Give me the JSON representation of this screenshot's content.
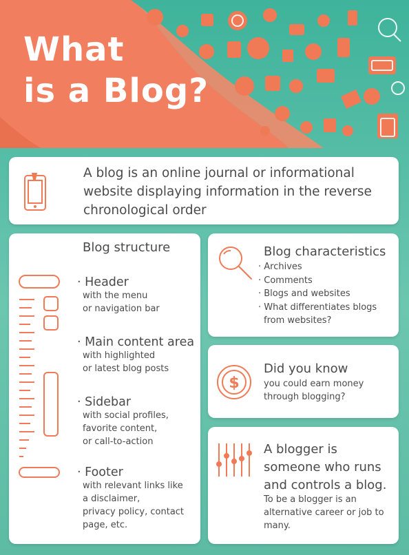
{
  "title": {
    "line1": "What",
    "line2": "is a Blog?"
  },
  "intro": {
    "text": "A blog is an online journal or informational website displaying information in the reverse chronological order"
  },
  "structure": {
    "heading": "Blog structure",
    "items": [
      {
        "title": "Header",
        "desc1": "with the menu",
        "desc2": "or navigation bar",
        "desc3": "",
        "desc4": ""
      },
      {
        "title": "Main content area",
        "desc1": "with highlighted",
        "desc2": "or latest blog posts",
        "desc3": "",
        "desc4": ""
      },
      {
        "title": "Sidebar",
        "desc1": "with social profiles,",
        "desc2": "favorite content,",
        "desc3": "or call-to-action",
        "desc4": ""
      },
      {
        "title": "Footer",
        "desc1": "with relevant links like",
        "desc2": "a disclaimer,",
        "desc3": "privacy policy, contact",
        "desc4": "page, etc."
      }
    ]
  },
  "characteristics": {
    "heading": "Blog characteristics",
    "items": [
      "Archives",
      "Comments",
      "Blogs and websites",
      "What differentiates blogs",
      "from websites?"
    ]
  },
  "didyouknow": {
    "heading": "Did you know",
    "line1": "you could earn money",
    "line2": "through blogging?"
  },
  "blogger": {
    "h1": "A blogger is",
    "h2": "someone who runs",
    "h3": "and controls a blog.",
    "l1": "To be a blogger is an",
    "l2": "alternative career or job to",
    "l3": "many."
  },
  "colors": {
    "accent": "#f07a56",
    "teal": "#4fb9a0",
    "text": "#4a4a4a"
  },
  "icons": [
    "phone-icon",
    "magnifier-icon",
    "dollar-icon",
    "sliders-icon",
    "layout-icon"
  ]
}
